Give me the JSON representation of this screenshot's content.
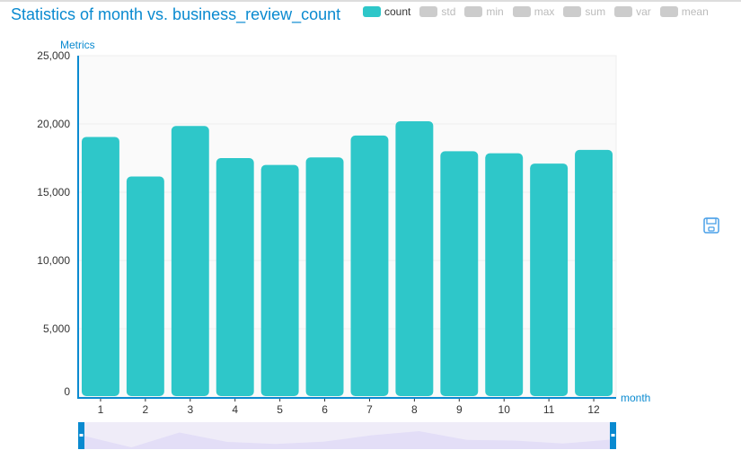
{
  "title": "Statistics of month vs. business_review_count",
  "legend": [
    {
      "name": "count",
      "active": true
    },
    {
      "name": "std",
      "active": false
    },
    {
      "name": "min",
      "active": false
    },
    {
      "name": "max",
      "active": false
    },
    {
      "name": "sum",
      "active": false
    },
    {
      "name": "var",
      "active": false
    },
    {
      "name": "mean",
      "active": false
    }
  ],
  "colors": {
    "bar": "#2ec7c9",
    "axis": "#0a8ad0",
    "inactive": "#cccccc",
    "zoom_fill": "#e3def7"
  },
  "save_icon": "floppy-disk-icon",
  "chart_data": {
    "type": "bar",
    "title": "Statistics of month vs. business_review_count",
    "xlabel": "month",
    "ylabel": "Metrics",
    "categories": [
      "1",
      "2",
      "3",
      "4",
      "5",
      "6",
      "7",
      "8",
      "9",
      "10",
      "11",
      "12"
    ],
    "series": [
      {
        "name": "count",
        "values": [
          19050,
          16150,
          19850,
          17500,
          17000,
          17550,
          19150,
          20200,
          18000,
          17850,
          17100,
          18100
        ]
      }
    ],
    "ylim": [
      0,
      25000
    ],
    "yticks": [
      0,
      5000,
      10000,
      15000,
      20000,
      25000
    ],
    "ytick_labels": [
      "0",
      "5,000",
      "10,000",
      "15,000",
      "20,000",
      "25,000"
    ],
    "grid": true,
    "legend": "top-right",
    "data_zoom": true
  }
}
